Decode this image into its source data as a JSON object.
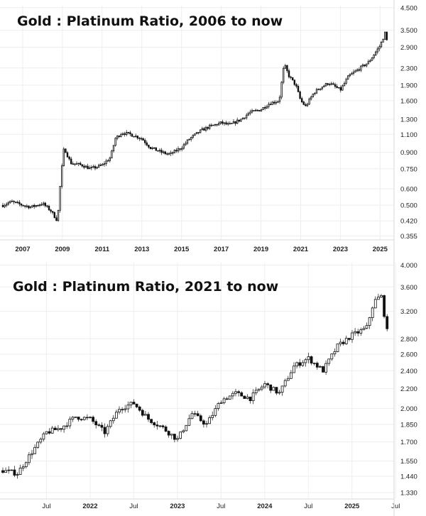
{
  "chart_data": [
    {
      "type": "candlestick",
      "title": "Gold : Platinum Ratio, 2006 to now",
      "xlabel": "",
      "ylabel": "",
      "y_scale": "log",
      "yticks": [
        "0.355",
        "0.420",
        "0.500",
        "0.600",
        "0.750",
        "0.900",
        "1.100",
        "1.300",
        "1.600",
        "1.900",
        "2.300",
        "2.900",
        "3.500",
        "4.500"
      ],
      "xticks": [
        "2007",
        "2009",
        "2011",
        "2013",
        "2015",
        "2017",
        "2019",
        "2021",
        "2023",
        "2025"
      ],
      "x_range": [
        "2006-01",
        "2025-06"
      ],
      "y_range": [
        0.34,
        4.6
      ],
      "grid": true,
      "series": [
        {
          "x": [
            "2006-01",
            "2006-06",
            "2007-01",
            "2007-06",
            "2008-01",
            "2008-06",
            "2008-10",
            "2008-12",
            "2009-02",
            "2009-06",
            "2010-01",
            "2010-06",
            "2011-01",
            "2011-06",
            "2011-09",
            "2012-01",
            "2012-06",
            "2013-01",
            "2013-06",
            "2014-01",
            "2014-06",
            "2015-01",
            "2015-06",
            "2016-01",
            "2016-06",
            "2017-01",
            "2017-06",
            "2018-01",
            "2018-06",
            "2019-01",
            "2019-06",
            "2019-12",
            "2020-03",
            "2020-06",
            "2020-10",
            "2021-01",
            "2021-04",
            "2021-09",
            "2022-01",
            "2022-06",
            "2023-01",
            "2023-06",
            "2024-01",
            "2024-06",
            "2025-01",
            "2025-04",
            "2025-06"
          ],
          "values": [
            0.5,
            0.52,
            0.5,
            0.49,
            0.51,
            0.47,
            0.42,
            0.68,
            0.95,
            0.8,
            0.78,
            0.75,
            0.78,
            0.85,
            1.05,
            1.12,
            1.1,
            1.05,
            0.95,
            0.9,
            0.88,
            0.95,
            1.05,
            1.15,
            1.2,
            1.25,
            1.22,
            1.3,
            1.4,
            1.45,
            1.55,
            1.6,
            2.4,
            2.1,
            1.9,
            1.6,
            1.5,
            1.75,
            1.85,
            1.95,
            1.8,
            2.1,
            2.3,
            2.45,
            2.95,
            3.4,
            2.9
          ]
        }
      ]
    },
    {
      "type": "candlestick",
      "title": "Gold : Platinum Ratio, 2021 to now",
      "xlabel": "",
      "ylabel": "",
      "y_scale": "log",
      "yticks": [
        "1.330",
        "1.440",
        "1.550",
        "1.700",
        "1.850",
        "2.000",
        "2.200",
        "2.400",
        "2.600",
        "2.800",
        "3.200",
        "3.600",
        "4.000"
      ],
      "xticks": [
        "Jul",
        "2022",
        "Jul",
        "2023",
        "Jul",
        "2024",
        "Jul",
        "2025",
        "Jul"
      ],
      "x_range": [
        "2021-01",
        "2025-06"
      ],
      "y_range": [
        1.29,
        4.05
      ],
      "grid": true,
      "series": [
        {
          "x": [
            "2021-01",
            "2021-03",
            "2021-05",
            "2021-07",
            "2021-09",
            "2021-11",
            "2022-01",
            "2022-03",
            "2022-05",
            "2022-07",
            "2022-09",
            "2022-11",
            "2023-01",
            "2023-03",
            "2023-05",
            "2023-07",
            "2023-09",
            "2023-11",
            "2024-01",
            "2024-03",
            "2024-05",
            "2024-07",
            "2024-09",
            "2024-11",
            "2025-01",
            "2025-03",
            "2025-04",
            "2025-05",
            "2025-06"
          ],
          "values": [
            1.48,
            1.46,
            1.62,
            1.78,
            1.82,
            1.92,
            1.9,
            1.78,
            2.0,
            2.05,
            1.9,
            1.82,
            1.72,
            1.95,
            1.85,
            2.08,
            2.15,
            2.1,
            2.25,
            2.15,
            2.45,
            2.55,
            2.4,
            2.7,
            2.85,
            2.95,
            3.35,
            3.45,
            2.8
          ]
        }
      ]
    }
  ]
}
